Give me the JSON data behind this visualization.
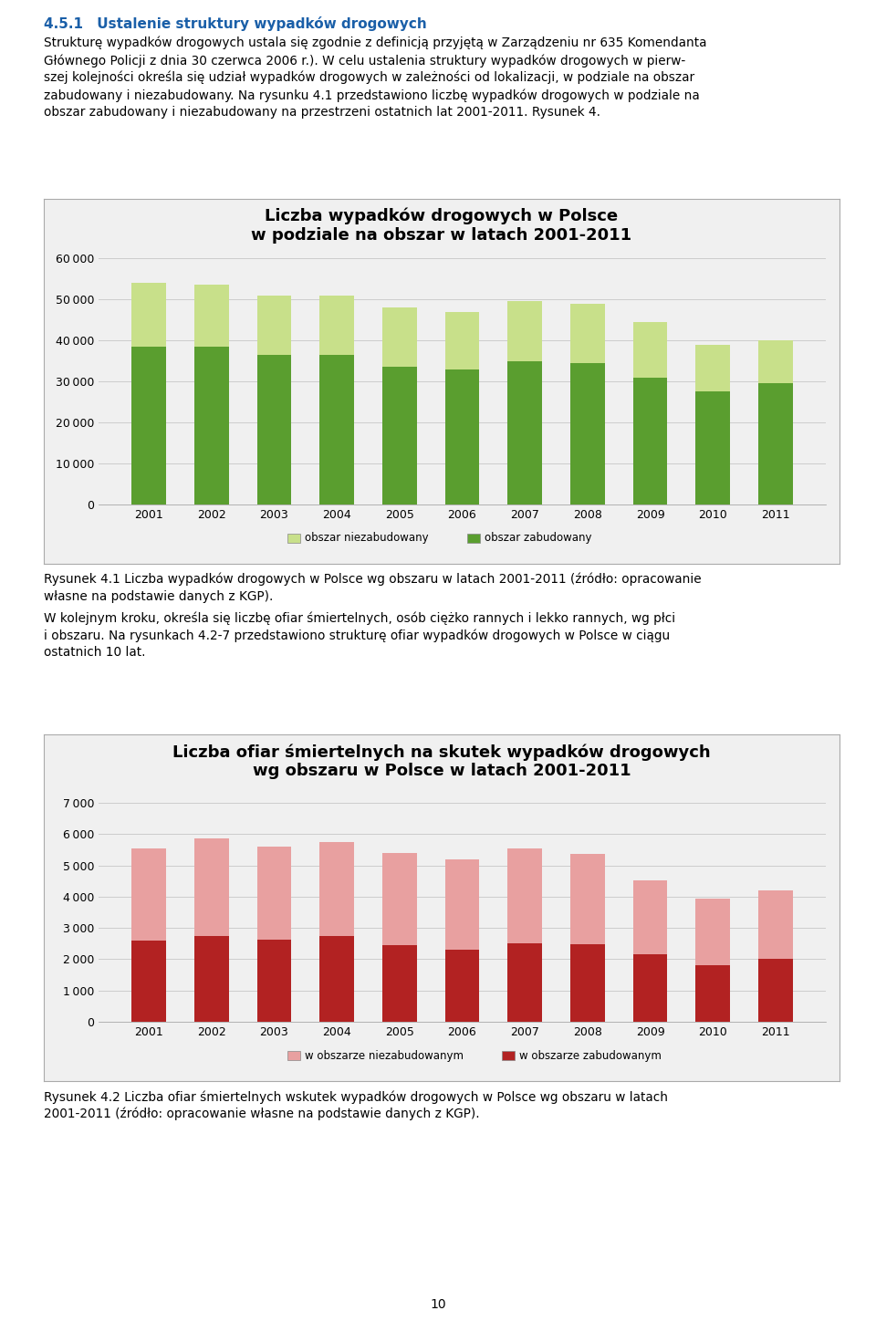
{
  "chart1": {
    "title": "Liczba wypadków drogowych w Polsce\nw podziale na obszar w latach 2001-2011",
    "years": [
      2001,
      2002,
      2003,
      2004,
      2005,
      2006,
      2007,
      2008,
      2009,
      2010,
      2011
    ],
    "zabudowany": [
      38500,
      38500,
      36500,
      36500,
      33500,
      33000,
      35000,
      34500,
      31000,
      27500,
      29500
    ],
    "niezabudowany": [
      15500,
      15000,
      14500,
      14500,
      14500,
      14000,
      14500,
      14500,
      13500,
      11500,
      10500
    ],
    "color_zabudowany": "#5a9e2f",
    "color_niezabudowany": "#c8e08a",
    "ylim": [
      0,
      60000
    ],
    "yticks": [
      0,
      10000,
      20000,
      30000,
      40000,
      50000,
      60000
    ],
    "legend1": "obszar niezabudowany",
    "legend2": "obszar zabudowany"
  },
  "chart2": {
    "title": "Liczba ofiar śmiertelnych na skutek wypadków drogowych\nwg obszaru w Polsce w latach 2001-2011",
    "years": [
      2001,
      2002,
      2003,
      2004,
      2005,
      2006,
      2007,
      2008,
      2009,
      2010,
      2011
    ],
    "zabudowany": [
      2600,
      2750,
      2620,
      2750,
      2450,
      2300,
      2500,
      2480,
      2150,
      1800,
      2000
    ],
    "niezabudowany": [
      2950,
      3100,
      2980,
      3000,
      2950,
      2900,
      3050,
      2900,
      2380,
      2150,
      2200
    ],
    "color_zabudowany": "#b22222",
    "color_niezabudowany": "#e8a0a0",
    "ylim": [
      0,
      7000
    ],
    "yticks": [
      0,
      1000,
      2000,
      3000,
      4000,
      5000,
      6000,
      7000
    ],
    "legend1": "w obszarze niezabudowanym",
    "legend2": "w obszarze zabudowanym"
  },
  "title_heading": "4.5.1 Ustalenie struktury wypadków drogowych",
  "body_text1_lines": [
    "Strukturę wypadków drogowych ustala się zgodnie z definicją przyjętą w Zarządzeniu nr 635 Komendanta",
    "Głównego Policji z dnia 30 czerwca 2006 r.). W celu ustalenia struktury wypadków drogowych w pierw-",
    "szej kolejności określa się udział wypadków drogowych w zależności od lokalizacji, w podziale na obszar",
    "zabudowany i niezabudowany. Na rysunku 4.1 przedstawiono liczbę wypadków drogowych w podziale na",
    "obszar zabudowany i niezabudowany na przestrzeni ostatnich lat 2001-2011. Rysunek 4."
  ],
  "caption1_lines": [
    "Rysunek 4.1 Liczba wypadków drogowych w Polsce wg obszaru w latach 2001-2011 (źródło: opracowanie",
    "własne na podstawie danych z KGP)."
  ],
  "text_between_lines": [
    "W kolejnym kroku, określa się liczbę ofiar śmiertelnych, osób ciężko rannych i lekko rannych, wg płci",
    "i obszaru. Na rysunkach 4.2-7 przedstawiono strukturę ofiar wypadków drogowych w Polsce w ciągu",
    "ostatnich 10 lat."
  ],
  "caption2_lines": [
    "Rysunek 4.2 Liczba ofiar śmiertelnych wskutek wypadków drogowych w Polsce wg obszaru w latach",
    "2001-2011 (źródło: opracowanie własne na podstawie danych z KGP)."
  ],
  "page_number": "10",
  "bg_color": "#ffffff",
  "chart_bg": "#f0f0f0",
  "grid_color": "#cccccc",
  "border_color": "#aaaaaa"
}
